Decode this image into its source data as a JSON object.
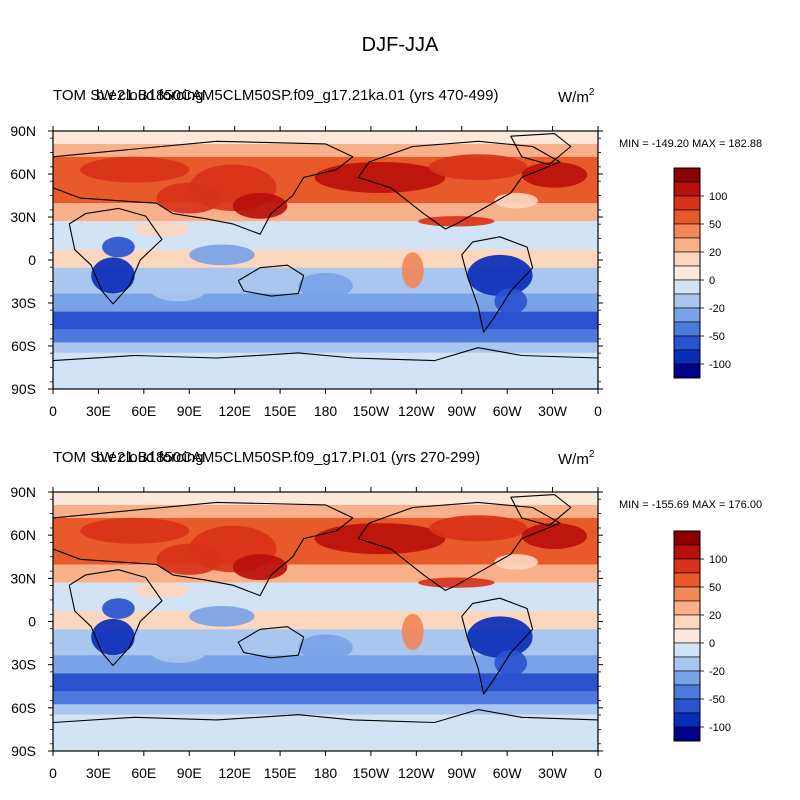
{
  "figure_title": "DJF-JJA",
  "panels": [
    {
      "title_left_a": "TOM SW cloud forcing",
      "title_left_b": "b.e21.B1850CAM5CLM50SP.f09_g17.21ka.01 (yrs 470-499)",
      "units_base": "W/m",
      "units_exp": "2",
      "minmax": "MIN = -149.20 MAX = 182.88"
    },
    {
      "title_left_a": "TOM SW cloud forcing",
      "title_left_b": "b.e21.B1850CAM5CLM50SP.f09_g17.PI.01 (yrs 270-299)",
      "units_base": "W/m",
      "units_exp": "2",
      "minmax": "MIN = -155.69 MAX = 176.00"
    }
  ],
  "lat_labels": [
    "90N",
    "60N",
    "30N",
    "0",
    "30S",
    "60S",
    "90S"
  ],
  "lon_labels": [
    "0",
    "30E",
    "60E",
    "90E",
    "120E",
    "150E",
    "180",
    "150W",
    "120W",
    "90W",
    "60W",
    "30W",
    "0"
  ],
  "colorbar": {
    "labels": [
      "100",
      "50",
      "20",
      "0",
      "-20",
      "-50",
      "-100"
    ],
    "colors": [
      "#8b0000",
      "#b8100a",
      "#d8321a",
      "#e85a2a",
      "#f2875a",
      "#f8b08a",
      "#fcd6bd",
      "#fde9dc",
      "#d2e3f6",
      "#a8c6ee",
      "#7aa2e6",
      "#4d79dd",
      "#2a52cf",
      "#0a2db8",
      "#00008b"
    ]
  },
  "colors": {
    "ocean_base": "#fde9dc",
    "coastline": "#000000"
  }
}
